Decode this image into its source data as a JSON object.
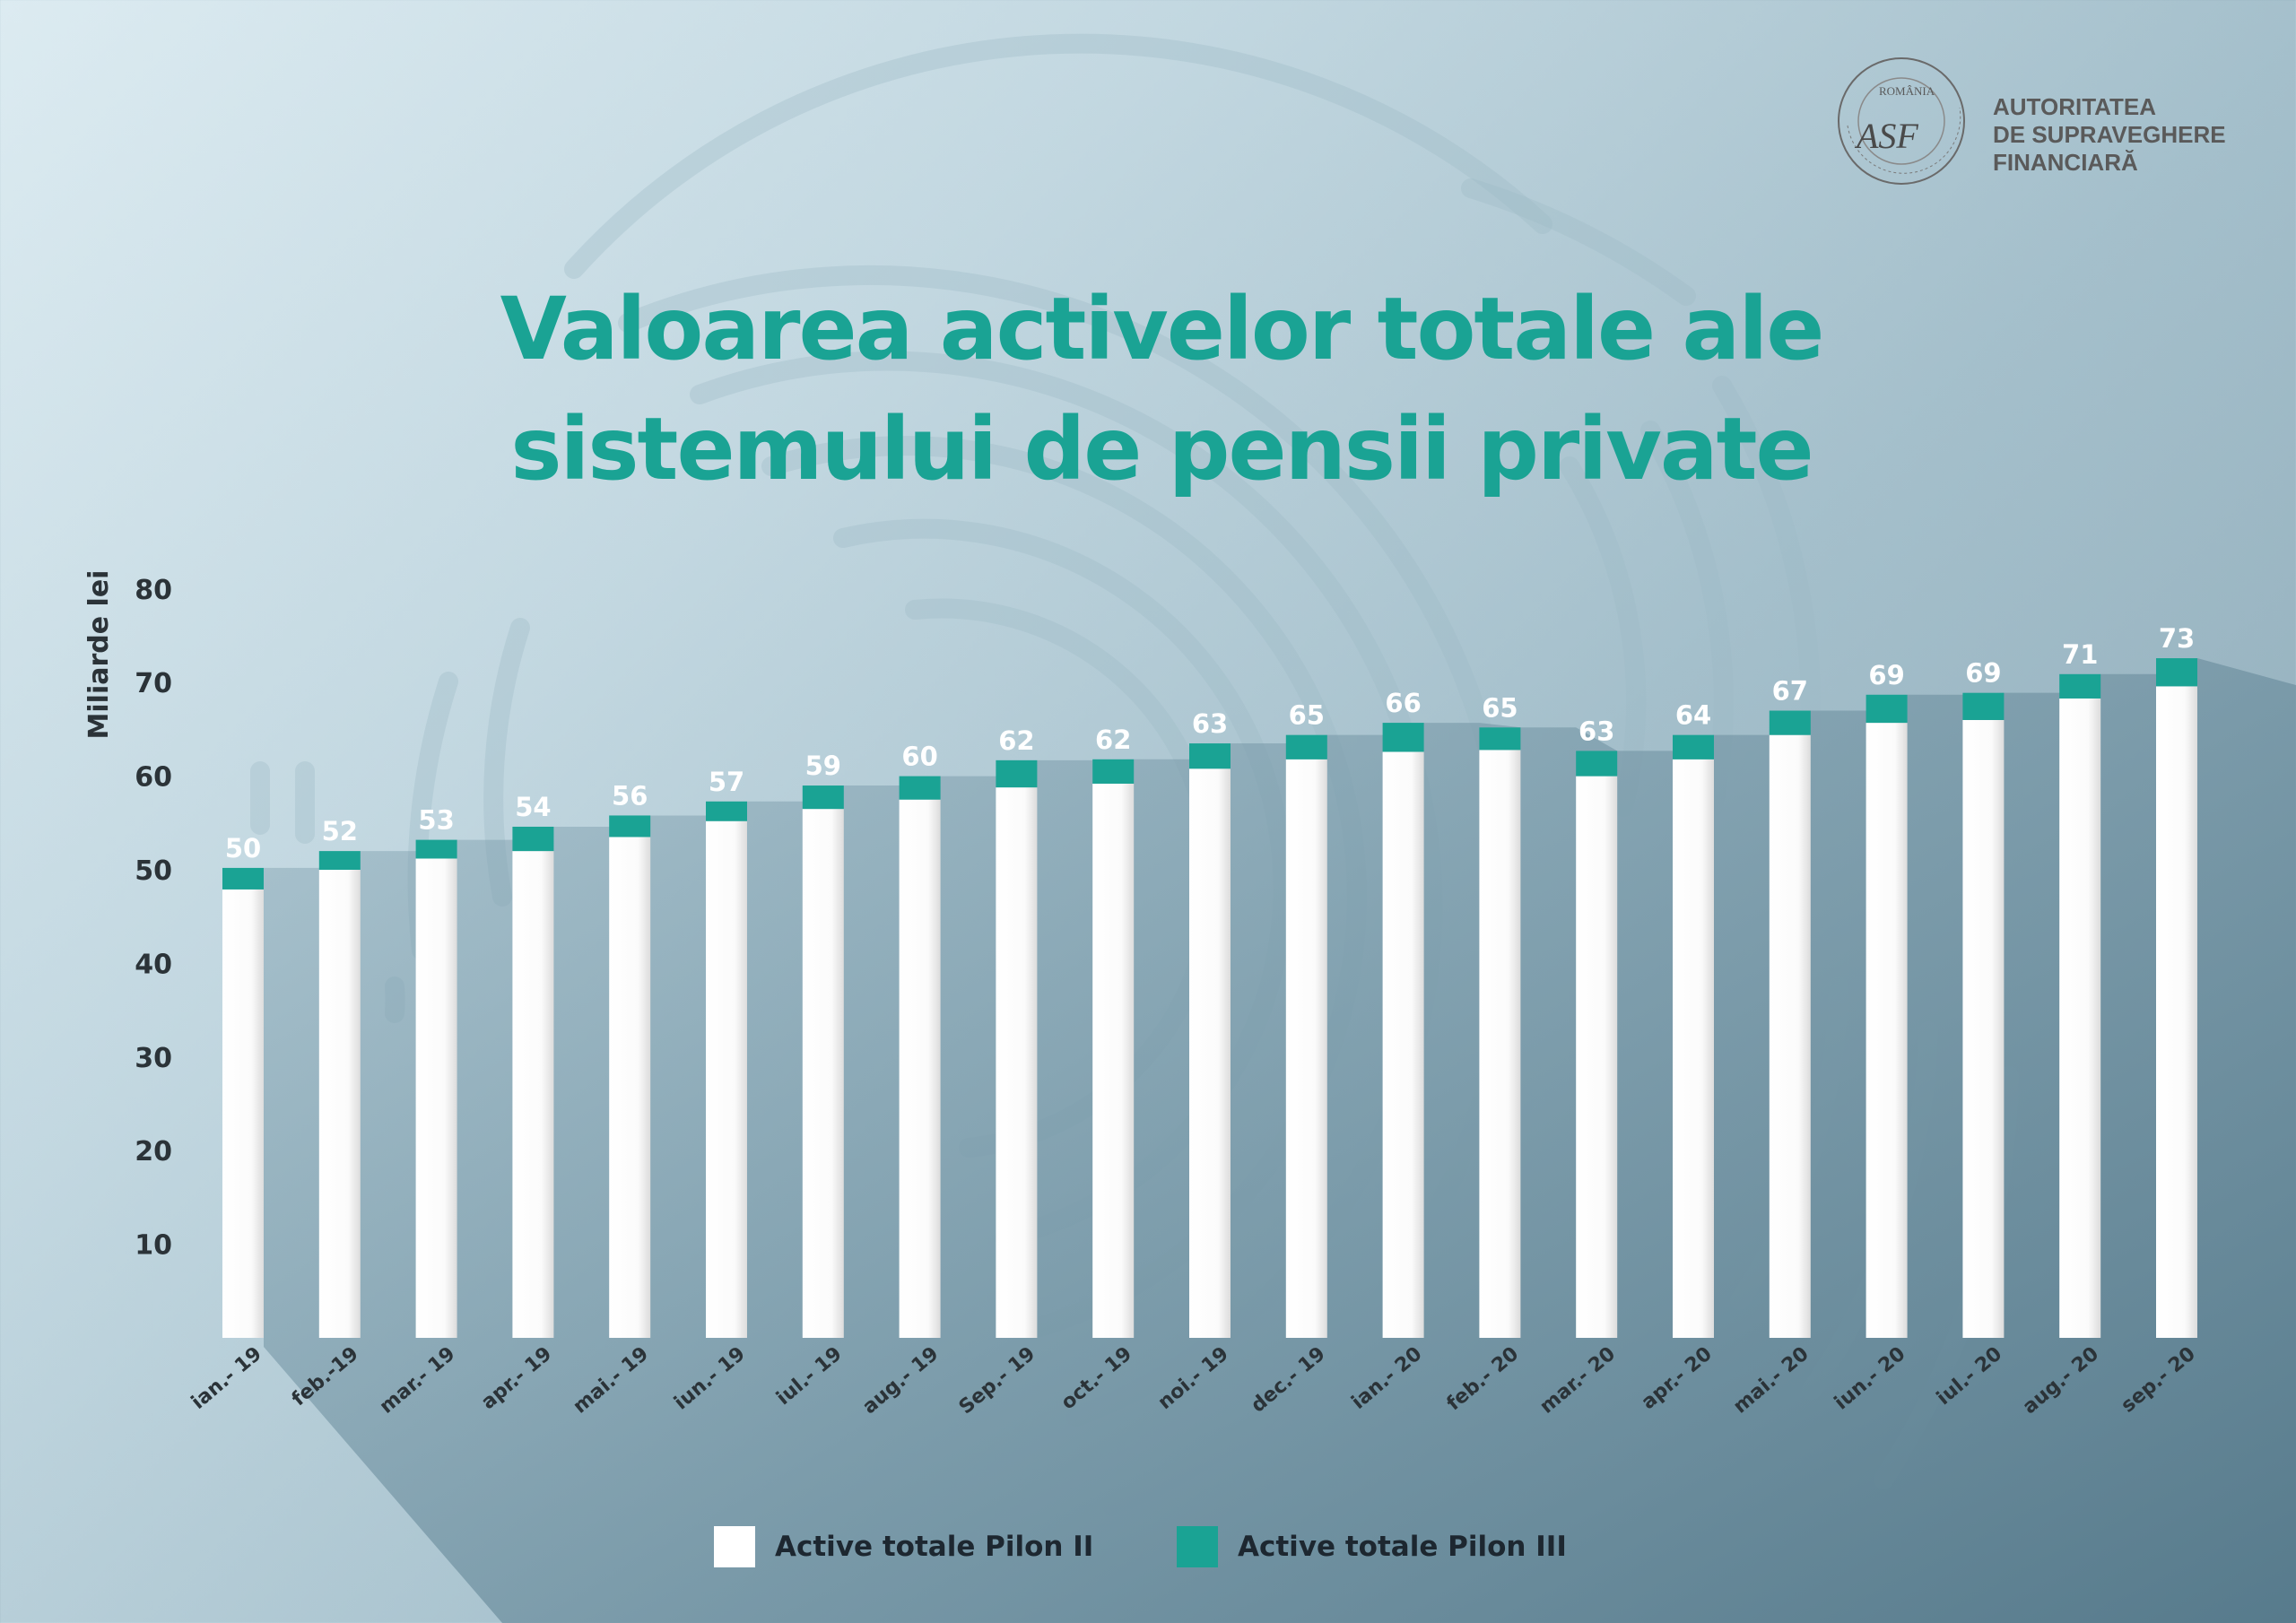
{
  "header": {
    "title_line1": "Valoarea activelor totale ale",
    "title_line2": "sistemului de pensii private"
  },
  "logo": {
    "seal_top_text": "ROMÂNIA",
    "seal_ring_text": "AUTORITATEA DE SUPRAVEGHERE FINANCIARĂ",
    "monogram": "ASF",
    "name_line1": "AUTORITATEA",
    "name_line2": "DE SUPRAVEGHERE",
    "name_line3": "FINANCIARĂ"
  },
  "colors": {
    "title": "#1aa394",
    "pilon2": "#ffffff",
    "pilon3": "#1aa394",
    "axis_text": "#2b3338",
    "data_label": "#ffffff"
  },
  "legend": {
    "pilon2_label": "Active totale Pilon II",
    "pilon3_label": "Active totale Pilon III"
  },
  "chart_data": {
    "type": "bar",
    "stacked": true,
    "ylabel": "Miliarde lei",
    "xlabel": "",
    "ylim": [
      0,
      80
    ],
    "yticks": [
      10,
      20,
      30,
      40,
      50,
      60,
      70,
      80
    ],
    "categories": [
      "ian.- 19",
      "feb.-19",
      "mar.- 19",
      "apr.- 19",
      "mai.- 19",
      "iun.- 19",
      "iul.- 19",
      "aug.- 19",
      "Sep.- 19",
      "oct.- 19",
      "noi.- 19",
      "dec.- 19",
      "ian.- 20",
      "feb.- 20",
      "mar.- 20",
      "apr.- 20",
      "mai.- 20",
      "iun.- 20",
      "iul.- 20",
      "aug.- 20",
      "sep.- 20"
    ],
    "series": [
      {
        "name": "Active totale Pilon II",
        "values": [
          47.9,
          50.0,
          51.2,
          52.0,
          53.5,
          55.2,
          56.5,
          57.5,
          58.8,
          59.2,
          60.8,
          61.8,
          62.6,
          62.8,
          60.0,
          61.8,
          64.4,
          65.7,
          66.0,
          68.3,
          69.6
        ]
      },
      {
        "name": "Active totale Pilon III",
        "values": [
          2.3,
          2.0,
          2.0,
          2.6,
          2.3,
          2.1,
          2.5,
          2.5,
          2.9,
          2.6,
          2.7,
          2.6,
          3.1,
          2.4,
          2.7,
          2.6,
          2.6,
          3.0,
          2.9,
          2.6,
          3.0
        ]
      }
    ],
    "totals": [
      50,
      52,
      53,
      54,
      56,
      57,
      59,
      60,
      62,
      62,
      63,
      65,
      66,
      65,
      63,
      64,
      67,
      69,
      69,
      71,
      73
    ],
    "grid": false,
    "legend_position": "bottom"
  }
}
